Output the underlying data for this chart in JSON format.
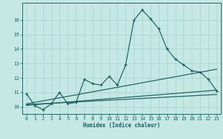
{
  "xlabel": "Humidex (Indice chaleur)",
  "bg_color": "#c5e8e5",
  "grid_color": "#aad4d0",
  "line_color": "#1a6060",
  "xlim": [
    -0.5,
    23.5
  ],
  "ylim": [
    9.5,
    17.2
  ],
  "yticks": [
    10,
    11,
    12,
    13,
    14,
    15,
    16
  ],
  "xticks": [
    0,
    1,
    2,
    3,
    4,
    5,
    6,
    7,
    8,
    9,
    10,
    11,
    12,
    13,
    14,
    15,
    16,
    17,
    18,
    19,
    20,
    21,
    22,
    23
  ],
  "series1_x": [
    0,
    1,
    2,
    3,
    4,
    5,
    6,
    7,
    8,
    9,
    10,
    11,
    12,
    13,
    14,
    15,
    16,
    17,
    18,
    19,
    20,
    21,
    22,
    23
  ],
  "series1_y": [
    10.9,
    10.1,
    9.8,
    10.2,
    11.0,
    10.2,
    10.3,
    11.9,
    11.6,
    11.5,
    12.1,
    11.5,
    12.9,
    16.0,
    16.7,
    16.1,
    15.4,
    14.0,
    13.3,
    12.9,
    12.5,
    12.4,
    11.9,
    11.1
  ],
  "series2_x": [
    0,
    23
  ],
  "series2_y": [
    10.2,
    12.6
  ],
  "series3_x": [
    0,
    23
  ],
  "series3_y": [
    10.1,
    11.15
  ],
  "series4_x": [
    0,
    23
  ],
  "series4_y": [
    10.15,
    10.85
  ]
}
